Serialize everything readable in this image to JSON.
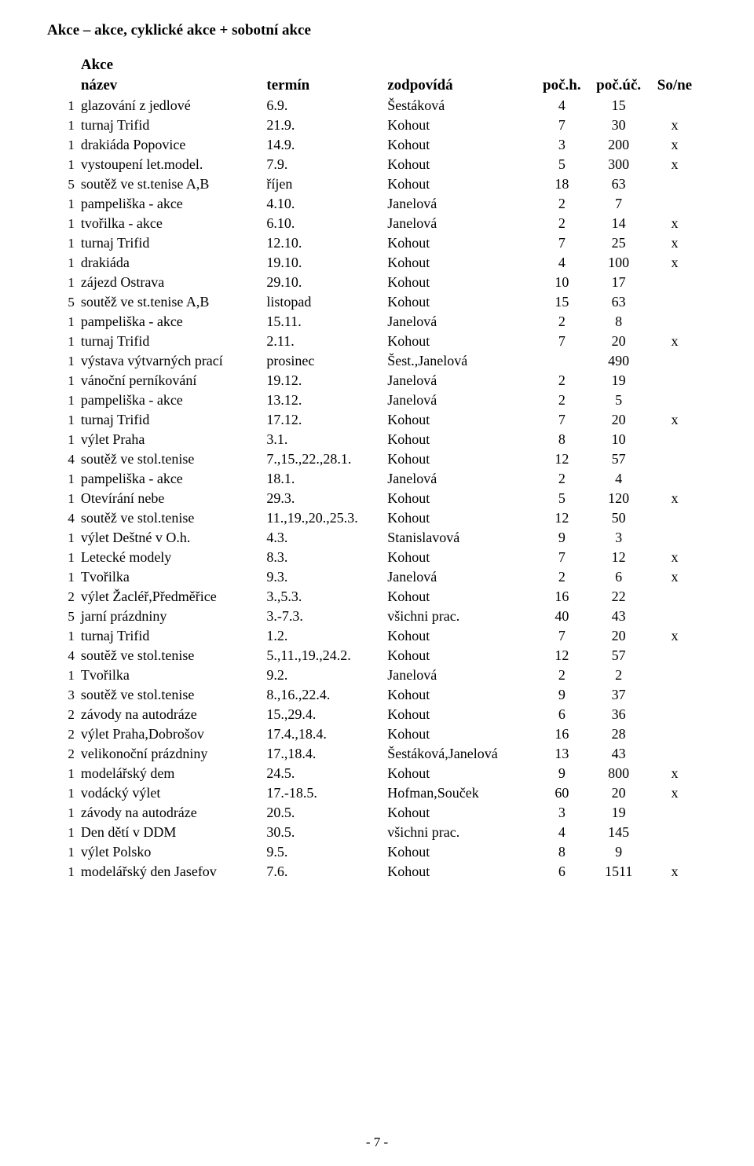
{
  "page_title": "Akce – akce, cyklické akce + sobotní akce",
  "subheader": "Akce",
  "page_number": "- 7 -",
  "columns": {
    "name": "název",
    "term": "termín",
    "resp": "zodpovídá",
    "h": "poč.h.",
    "uc": "poč.úč.",
    "sone": "So/ne"
  },
  "rows": [
    {
      "n": "1",
      "name": "glazování z jedlové",
      "term": "6.9.",
      "resp": "Šestáková",
      "h": "4",
      "uc": "15",
      "sone": ""
    },
    {
      "n": "1",
      "name": "turnaj Trifid",
      "term": "21.9.",
      "resp": "Kohout",
      "h": "7",
      "uc": "30",
      "sone": "x"
    },
    {
      "n": "1",
      "name": "drakiáda Popovice",
      "term": "14.9.",
      "resp": "Kohout",
      "h": "3",
      "uc": "200",
      "sone": "x"
    },
    {
      "n": "1",
      "name": "vystoupení let.model.",
      "term": "7.9.",
      "resp": "Kohout",
      "h": "5",
      "uc": "300",
      "sone": "x"
    },
    {
      "n": "5",
      "name": "soutěž ve st.tenise A,B",
      "term": "říjen",
      "resp": "Kohout",
      "h": "18",
      "uc": "63",
      "sone": ""
    },
    {
      "n": "1",
      "name": "pampeliška - akce",
      "term": "4.10.",
      "resp": "Janelová",
      "h": "2",
      "uc": "7",
      "sone": ""
    },
    {
      "n": "1",
      "name": "tvořilka - akce",
      "term": "6.10.",
      "resp": "Janelová",
      "h": "2",
      "uc": "14",
      "sone": "x"
    },
    {
      "n": "1",
      "name": "turnaj Trifid",
      "term": "12.10.",
      "resp": "Kohout",
      "h": "7",
      "uc": "25",
      "sone": "x"
    },
    {
      "n": "1",
      "name": "drakiáda",
      "term": "19.10.",
      "resp": "Kohout",
      "h": "4",
      "uc": "100",
      "sone": "x"
    },
    {
      "n": "1",
      "name": "zájezd Ostrava",
      "term": "29.10.",
      "resp": "Kohout",
      "h": "10",
      "uc": "17",
      "sone": ""
    },
    {
      "n": "5",
      "name": "soutěž ve st.tenise A,B",
      "term": "listopad",
      "resp": "Kohout",
      "h": "15",
      "uc": "63",
      "sone": ""
    },
    {
      "n": "1",
      "name": "pampeliška - akce",
      "term": "15.11.",
      "resp": "Janelová",
      "h": "2",
      "uc": "8",
      "sone": ""
    },
    {
      "n": "1",
      "name": "turnaj Trifid",
      "term": "2.11.",
      "resp": "Kohout",
      "h": "7",
      "uc": "20",
      "sone": "x"
    },
    {
      "n": "1",
      "name": "výstava výtvarných prací",
      "term": "prosinec",
      "resp": "Šest.,Janelová",
      "h": "",
      "uc": "490",
      "sone": ""
    },
    {
      "n": "1",
      "name": "vánoční perníkování",
      "term": "19.12.",
      "resp": "Janelová",
      "h": "2",
      "uc": "19",
      "sone": ""
    },
    {
      "n": "1",
      "name": "pampeliška - akce",
      "term": "13.12.",
      "resp": "Janelová",
      "h": "2",
      "uc": "5",
      "sone": ""
    },
    {
      "n": "1",
      "name": "turnaj Trifid",
      "term": "17.12.",
      "resp": "Kohout",
      "h": "7",
      "uc": "20",
      "sone": "x"
    },
    {
      "n": "1",
      "name": "výlet Praha",
      "term": "3.1.",
      "resp": "Kohout",
      "h": "8",
      "uc": "10",
      "sone": ""
    },
    {
      "n": "4",
      "name": "soutěž ve stol.tenise",
      "term": "7.,15.,22.,28.1.",
      "resp": "Kohout",
      "h": "12",
      "uc": "57",
      "sone": ""
    },
    {
      "n": "1",
      "name": "pampeliška - akce",
      "term": "18.1.",
      "resp": "Janelová",
      "h": "2",
      "uc": "4",
      "sone": ""
    },
    {
      "n": "1",
      "name": "Otevírání nebe",
      "term": "29.3.",
      "resp": "Kohout",
      "h": "5",
      "uc": "120",
      "sone": "x"
    },
    {
      "n": "4",
      "name": "soutěž ve stol.tenise",
      "term": "11.,19.,20.,25.3.",
      "resp": "Kohout",
      "h": "12",
      "uc": "50",
      "sone": ""
    },
    {
      "n": "1",
      "name": "výlet Deštné v O.h.",
      "term": "4.3.",
      "resp": "Stanislavová",
      "h": "9",
      "uc": "3",
      "sone": ""
    },
    {
      "n": "1",
      "name": "Letecké modely",
      "term": "8.3.",
      "resp": "Kohout",
      "h": "7",
      "uc": "12",
      "sone": "x"
    },
    {
      "n": "1",
      "name": "Tvořilka",
      "term": "9.3.",
      "resp": "Janelová",
      "h": "2",
      "uc": "6",
      "sone": "x"
    },
    {
      "n": "2",
      "name": "výlet Žacléř,Předměřice",
      "term": "3.,5.3.",
      "resp": "Kohout",
      "h": "16",
      "uc": "22",
      "sone": ""
    },
    {
      "n": "5",
      "name": "jarní prázdniny",
      "term": "3.-7.3.",
      "resp": "všichni prac.",
      "h": "40",
      "uc": "43",
      "sone": ""
    },
    {
      "n": "1",
      "name": "turnaj Trifid",
      "term": "1.2.",
      "resp": "Kohout",
      "h": "7",
      "uc": "20",
      "sone": "x"
    },
    {
      "n": "4",
      "name": "soutěž ve stol.tenise",
      "term": "5.,11.,19.,24.2.",
      "resp": "Kohout",
      "h": "12",
      "uc": "57",
      "sone": ""
    },
    {
      "n": "1",
      "name": "Tvořilka",
      "term": "9.2.",
      "resp": "Janelová",
      "h": "2",
      "uc": "2",
      "sone": ""
    },
    {
      "n": "3",
      "name": "soutěž ve stol.tenise",
      "term": "8.,16.,22.4.",
      "resp": "Kohout",
      "h": "9",
      "uc": "37",
      "sone": ""
    },
    {
      "n": "2",
      "name": "závody na autodráze",
      "term": "15.,29.4.",
      "resp": "Kohout",
      "h": "6",
      "uc": "36",
      "sone": ""
    },
    {
      "n": "2",
      "name": "výlet Praha,Dobrošov",
      "term": "17.4.,18.4.",
      "resp": "Kohout",
      "h": "16",
      "uc": "28",
      "sone": ""
    },
    {
      "n": "2",
      "name": "velikonoční prázdniny",
      "term": "17.,18.4.",
      "resp": "Šestáková,Janelová",
      "h": "13",
      "uc": "43",
      "sone": ""
    },
    {
      "n": "1",
      "name": "modelářský dem",
      "term": "24.5.",
      "resp": "Kohout",
      "h": "9",
      "uc": "800",
      "sone": "x"
    },
    {
      "n": "1",
      "name": "vodácký výlet",
      "term": "17.-18.5.",
      "resp": "Hofman,Souček",
      "h": "60",
      "uc": "20",
      "sone": "x"
    },
    {
      "n": "1",
      "name": "závody na autodráze",
      "term": "20.5.",
      "resp": "Kohout",
      "h": "3",
      "uc": "19",
      "sone": ""
    },
    {
      "n": "1",
      "name": "Den dětí v DDM",
      "term": "30.5.",
      "resp": "všichni prac.",
      "h": "4",
      "uc": "145",
      "sone": ""
    },
    {
      "n": "1",
      "name": "výlet Polsko",
      "term": "9.5.",
      "resp": "Kohout",
      "h": "8",
      "uc": "9",
      "sone": ""
    },
    {
      "n": "1",
      "name": "modelářský den Jasefov",
      "term": "7.6.",
      "resp": "Kohout",
      "h": "6",
      "uc": "1511",
      "sone": "x"
    }
  ]
}
